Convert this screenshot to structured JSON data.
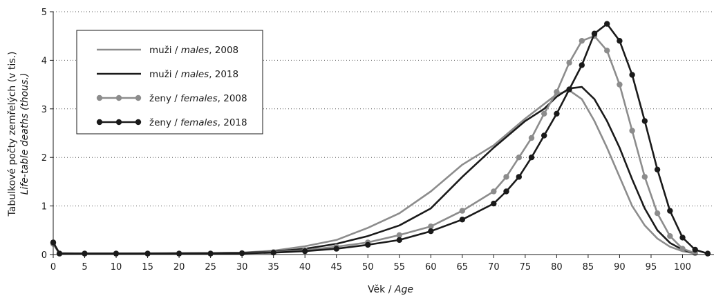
{
  "chart_data": {
    "type": "line",
    "xlabel": {
      "main": "Věk / ",
      "italic": "Age"
    },
    "ylabel": {
      "line1": "Tabulkové počty zemřelých (v tis.)",
      "line2": "Life-table deaths (thous.)"
    },
    "xlim": [
      0,
      105
    ],
    "ylim": [
      0,
      5
    ],
    "x_ticks": [
      0,
      5,
      10,
      15,
      20,
      25,
      30,
      35,
      40,
      45,
      50,
      55,
      60,
      65,
      70,
      75,
      80,
      85,
      90,
      95,
      100
    ],
    "y_ticks": [
      0,
      1,
      2,
      3,
      4,
      5
    ],
    "grid": "horizontal dotted",
    "legend_position": "top-left",
    "series": [
      {
        "name": "muži / males, 2008",
        "legend": {
          "pre": "muži / ",
          "ital": "males",
          "post": ", 2008"
        },
        "color": "#8c8c8c",
        "markers": false,
        "points": [
          [
            0,
            0.25
          ],
          [
            1,
            0.03
          ],
          [
            5,
            0.02
          ],
          [
            10,
            0.02
          ],
          [
            15,
            0.025
          ],
          [
            20,
            0.03
          ],
          [
            25,
            0.03
          ],
          [
            30,
            0.04
          ],
          [
            35,
            0.08
          ],
          [
            40,
            0.17
          ],
          [
            45,
            0.3
          ],
          [
            50,
            0.55
          ],
          [
            55,
            0.85
          ],
          [
            60,
            1.3
          ],
          [
            65,
            1.85
          ],
          [
            70,
            2.25
          ],
          [
            75,
            2.8
          ],
          [
            78,
            3.1
          ],
          [
            80,
            3.3
          ],
          [
            82,
            3.38
          ],
          [
            84,
            3.2
          ],
          [
            86,
            2.75
          ],
          [
            88,
            2.2
          ],
          [
            90,
            1.6
          ],
          [
            92,
            1.0
          ],
          [
            94,
            0.6
          ],
          [
            96,
            0.33
          ],
          [
            98,
            0.16
          ],
          [
            100,
            0.07
          ],
          [
            102,
            0.02
          ]
        ]
      },
      {
        "name": "muži / males, 2018",
        "legend": {
          "pre": "muži / ",
          "ital": "males",
          "post": ", 2018"
        },
        "color": "#1a1a1a",
        "markers": false,
        "points": [
          [
            0,
            0.22
          ],
          [
            1,
            0.02
          ],
          [
            5,
            0.02
          ],
          [
            10,
            0.02
          ],
          [
            15,
            0.02
          ],
          [
            20,
            0.025
          ],
          [
            25,
            0.03
          ],
          [
            30,
            0.035
          ],
          [
            35,
            0.06
          ],
          [
            40,
            0.12
          ],
          [
            45,
            0.22
          ],
          [
            50,
            0.38
          ],
          [
            55,
            0.6
          ],
          [
            60,
            0.95
          ],
          [
            65,
            1.6
          ],
          [
            70,
            2.2
          ],
          [
            75,
            2.75
          ],
          [
            78,
            3.0
          ],
          [
            80,
            3.25
          ],
          [
            82,
            3.42
          ],
          [
            84,
            3.45
          ],
          [
            86,
            3.2
          ],
          [
            88,
            2.75
          ],
          [
            90,
            2.2
          ],
          [
            92,
            1.55
          ],
          [
            94,
            0.95
          ],
          [
            96,
            0.5
          ],
          [
            98,
            0.24
          ],
          [
            100,
            0.1
          ],
          [
            102,
            0.03
          ]
        ]
      },
      {
        "name": "ženy / females, 2008",
        "legend": {
          "pre": "ženy / ",
          "ital": "females",
          "post": ", 2008"
        },
        "color": "#8c8c8c",
        "markers": true,
        "points": [
          [
            0,
            0.22
          ],
          [
            1,
            0.02
          ],
          [
            5,
            0.02
          ],
          [
            10,
            0.02
          ],
          [
            15,
            0.02
          ],
          [
            20,
            0.02
          ],
          [
            25,
            0.02
          ],
          [
            30,
            0.03
          ],
          [
            35,
            0.05
          ],
          [
            40,
            0.09
          ],
          [
            45,
            0.16
          ],
          [
            50,
            0.25
          ],
          [
            55,
            0.4
          ],
          [
            60,
            0.58
          ],
          [
            65,
            0.9
          ],
          [
            70,
            1.3
          ],
          [
            72,
            1.6
          ],
          [
            74,
            2.0
          ],
          [
            76,
            2.4
          ],
          [
            78,
            2.9
          ],
          [
            80,
            3.35
          ],
          [
            82,
            3.95
          ],
          [
            84,
            4.4
          ],
          [
            86,
            4.5
          ],
          [
            88,
            4.2
          ],
          [
            90,
            3.5
          ],
          [
            92,
            2.55
          ],
          [
            94,
            1.6
          ],
          [
            96,
            0.85
          ],
          [
            98,
            0.38
          ],
          [
            100,
            0.12
          ],
          [
            102,
            0.03
          ]
        ]
      },
      {
        "name": "ženy / females, 2018",
        "legend": {
          "pre": "ženy / ",
          "ital": "females",
          "post": ", 2018"
        },
        "color": "#1a1a1a",
        "markers": true,
        "points": [
          [
            0,
            0.25
          ],
          [
            1,
            0.02
          ],
          [
            5,
            0.02
          ],
          [
            10,
            0.02
          ],
          [
            15,
            0.02
          ],
          [
            20,
            0.02
          ],
          [
            25,
            0.02
          ],
          [
            30,
            0.025
          ],
          [
            35,
            0.04
          ],
          [
            40,
            0.07
          ],
          [
            45,
            0.12
          ],
          [
            50,
            0.2
          ],
          [
            55,
            0.3
          ],
          [
            60,
            0.48
          ],
          [
            65,
            0.72
          ],
          [
            70,
            1.05
          ],
          [
            72,
            1.3
          ],
          [
            74,
            1.6
          ],
          [
            76,
            2.0
          ],
          [
            78,
            2.45
          ],
          [
            80,
            2.9
          ],
          [
            82,
            3.4
          ],
          [
            84,
            3.9
          ],
          [
            86,
            4.55
          ],
          [
            88,
            4.75
          ],
          [
            90,
            4.4
          ],
          [
            92,
            3.7
          ],
          [
            94,
            2.75
          ],
          [
            96,
            1.75
          ],
          [
            98,
            0.9
          ],
          [
            100,
            0.35
          ],
          [
            102,
            0.1
          ],
          [
            104,
            0.02
          ]
        ]
      }
    ]
  }
}
